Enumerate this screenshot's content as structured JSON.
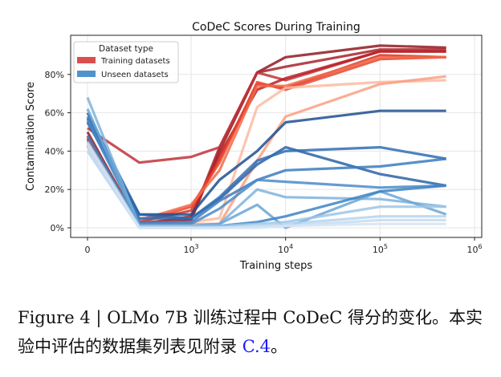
{
  "chart_data": {
    "type": "line",
    "title": "CoDeC Scores During Training",
    "xlabel": "Training steps",
    "ylabel": "Contamination Score",
    "xscale": "symlog",
    "x": [
      0,
      500,
      1000,
      2000,
      5000,
      10000,
      100000,
      500000
    ],
    "xticks": [
      {
        "value": 0,
        "label": "0"
      },
      {
        "value": 1000,
        "label": "10",
        "exp": "3"
      },
      {
        "value": 10000,
        "label": "10",
        "exp": "4"
      },
      {
        "value": 100000,
        "label": "10",
        "exp": "5"
      },
      {
        "value": 1000000,
        "label": "10",
        "exp": "6"
      }
    ],
    "yticks": [
      {
        "value": 0,
        "label": "0%"
      },
      {
        "value": 20,
        "label": "20%"
      },
      {
        "value": 40,
        "label": "40%"
      },
      {
        "value": 60,
        "label": "60%"
      },
      {
        "value": 80,
        "label": "80%"
      }
    ],
    "ylim": [
      -3,
      99
    ],
    "grid": true,
    "legend": {
      "title": "Dataset type",
      "placement": "top-left",
      "entries": [
        {
          "label": "Training datasets",
          "color": "#d9504f"
        },
        {
          "label": "Unseen datasets",
          "color": "#4f93cc"
        }
      ]
    },
    "series": [
      {
        "group": "training",
        "color": "#8e1b22",
        "values": [
          50,
          1,
          4,
          40,
          81,
          89,
          95,
          94
        ]
      },
      {
        "group": "training",
        "color": "#a8232a",
        "values": [
          48,
          2,
          5,
          42,
          81,
          84,
          93,
          93
        ]
      },
      {
        "group": "training",
        "color": "#c0333a",
        "values": [
          52,
          34,
          37,
          42,
          81,
          77,
          92,
          92
        ]
      },
      {
        "group": "training",
        "color": "#b81f24",
        "values": [
          46,
          2,
          6,
          38,
          72,
          78,
          92,
          92
        ]
      },
      {
        "group": "training",
        "color": "#d7301f",
        "values": [
          47,
          3,
          9,
          36,
          75,
          73,
          90,
          89
        ]
      },
      {
        "group": "training",
        "color": "#e8452f",
        "values": [
          44,
          3,
          11,
          34,
          76,
          72,
          88,
          89
        ]
      },
      {
        "group": "training",
        "color": "#f26a4a",
        "values": [
          43,
          4,
          12,
          30,
          74,
          74,
          89,
          89
        ]
      },
      {
        "group": "training",
        "color": "#fcbba1",
        "values": [
          42,
          2,
          3,
          5,
          63,
          73,
          76,
          77
        ]
      },
      {
        "group": "training",
        "color": "#fc9f82",
        "values": [
          43,
          1,
          2,
          2,
          35,
          58,
          75,
          79
        ]
      },
      {
        "group": "unseen",
        "color": "#1f4f8f",
        "values": [
          55,
          7,
          7,
          25,
          40,
          55,
          61,
          61
        ]
      },
      {
        "group": "unseen",
        "color": "#2a63a8",
        "values": [
          60,
          7,
          5,
          15,
          33,
          42,
          28,
          22
        ]
      },
      {
        "group": "unseen",
        "color": "#2f6db3",
        "values": [
          57,
          5,
          5,
          16,
          35,
          40,
          42,
          36
        ]
      },
      {
        "group": "unseen",
        "color": "#3b7dbf",
        "values": [
          58,
          3,
          3,
          14,
          25,
          30,
          32,
          36
        ]
      },
      {
        "group": "unseen",
        "color": "#4a8bc8",
        "values": [
          56,
          2,
          2,
          10,
          25,
          24,
          21,
          22
        ]
      },
      {
        "group": "unseen",
        "color": "#7fb3dc",
        "values": [
          68,
          1,
          1,
          2,
          20,
          16,
          15,
          11
        ]
      },
      {
        "group": "unseen",
        "color": "#6aa6d6",
        "values": [
          62,
          1,
          1,
          2,
          12,
          0,
          19,
          7
        ]
      },
      {
        "group": "unseen",
        "color": "#3c84c4",
        "values": [
          48,
          1,
          1,
          1,
          3,
          6,
          19,
          22
        ]
      },
      {
        "group": "unseen",
        "color": "#9cc5e6",
        "values": [
          45,
          1,
          1,
          1,
          2,
          3,
          11,
          11
        ]
      },
      {
        "group": "unseen",
        "color": "#b6d4ee",
        "values": [
          40,
          0,
          0,
          0,
          1,
          2,
          6,
          6
        ]
      },
      {
        "group": "unseen",
        "color": "#c6dcf0",
        "values": [
          42,
          0,
          0,
          0,
          1,
          1,
          4,
          4
        ]
      },
      {
        "group": "unseen",
        "color": "#d3e4f4",
        "values": [
          44,
          0,
          0,
          0,
          0,
          1,
          2,
          2
        ]
      }
    ]
  },
  "caption": {
    "label": "Figure 4 | ",
    "text": "OLMo 7B 训练过程中 CoDeC 得分的变化。本实验中评估的数据集列表见附录 ",
    "link": "C.4",
    "end": "。"
  }
}
